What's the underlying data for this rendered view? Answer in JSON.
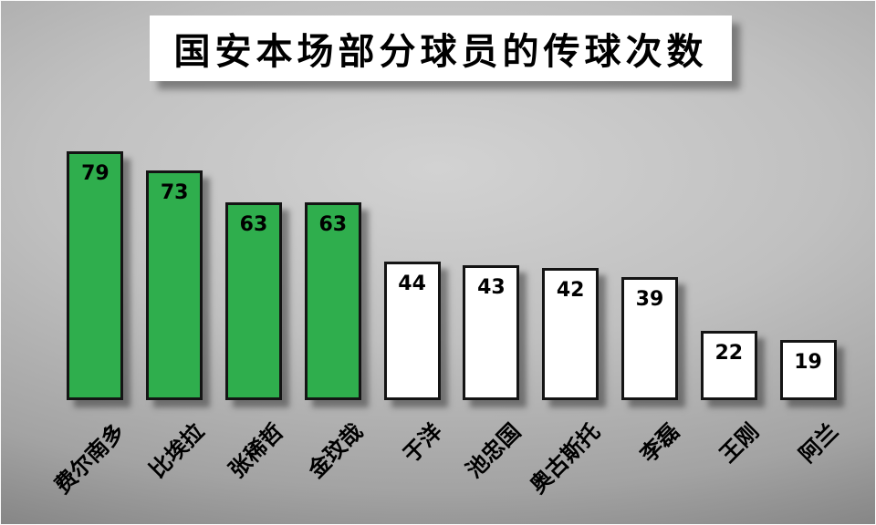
{
  "chart_data": {
    "type": "bar",
    "title": "国安本场部分球员的传球次数",
    "categories": [
      "费尔南多",
      "比埃拉",
      "张稀哲",
      "金玟哉",
      "于洋",
      "池忠国",
      "奥古斯托",
      "李磊",
      "王刚",
      "阿兰"
    ],
    "values": [
      79,
      73,
      63,
      63,
      44,
      43,
      42,
      39,
      22,
      19
    ],
    "bar_colors": [
      "#2fae4d",
      "#2fae4d",
      "#2fae4d",
      "#2fae4d",
      "#ffffff",
      "#ffffff",
      "#ffffff",
      "#ffffff",
      "#ffffff",
      "#ffffff"
    ],
    "xlabel": "",
    "ylabel": "",
    "ylim": [
      0,
      80
    ],
    "grid": false,
    "legend": false,
    "data_labels": "inside-top",
    "x_tick_rotation": -45
  },
  "colors": {
    "highlight_green": "#2fae4d",
    "bar_white": "#ffffff",
    "bar_border": "#141414",
    "title_bg": "#ffffff",
    "title_text": "#000000"
  }
}
